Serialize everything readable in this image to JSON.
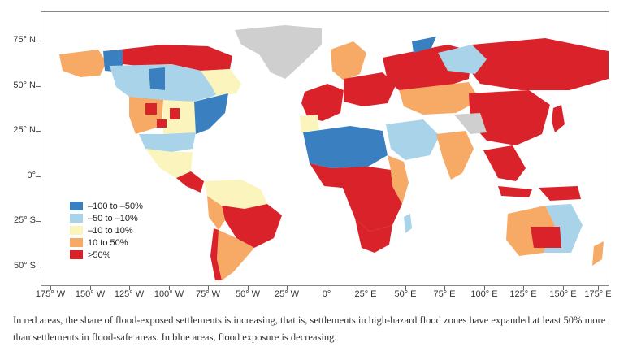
{
  "map": {
    "y_axis_labels": [
      "75° N",
      "50° N",
      "25° N",
      "0°",
      "25° S",
      "50° S"
    ],
    "x_axis_labels": [
      "175° W",
      "150° W",
      "125° W",
      "100° W",
      "75° W",
      "50° W",
      "25° W",
      "0°",
      "25° E",
      "50° E",
      "75° E",
      "100° E",
      "125° E",
      "150° E",
      "175° E"
    ],
    "colors": {
      "strong_decrease": "#3a7fbf",
      "decrease": "#a9d3e8",
      "stable": "#fbf5bd",
      "increase": "#f6aa66",
      "strong_increase": "#d9222a",
      "no_data": "#cfcfcf"
    }
  },
  "legend": {
    "items": [
      {
        "label": "–100 to –50%",
        "color": "#3a7fbf"
      },
      {
        "label": "–50 to –10%",
        "color": "#a9d3e8"
      },
      {
        "label": "–10 to 10%",
        "color": "#fbf5bd"
      },
      {
        "label": "10 to 50%",
        "color": "#f6aa66"
      },
      {
        "label": ">50%",
        "color": "#d9222a"
      }
    ]
  },
  "caption": {
    "text": "In red areas, the share of flood-exposed settlements is increasing, that is, settlements in high-hazard flood zones have expanded at least 50% more than settlements in flood-safe areas. In blue areas, flood exposure is decreasing."
  }
}
